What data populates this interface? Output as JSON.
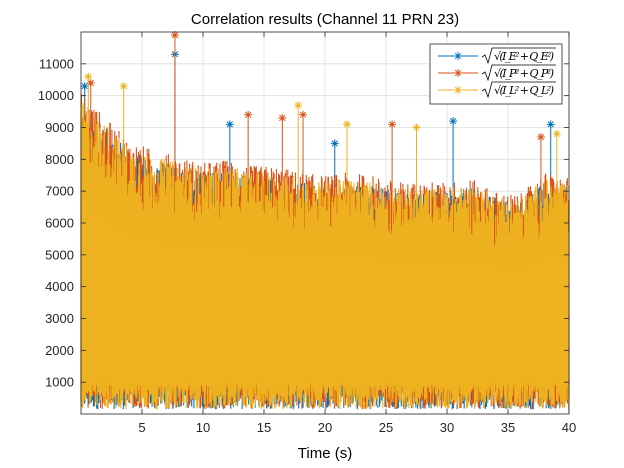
{
  "chart_data": {
    "type": "line",
    "title": "Correlation results (Channel 11 PRN 23)",
    "xlabel": "Time (s)",
    "ylabel": "",
    "xlim": [
      0,
      40
    ],
    "ylim": [
      0,
      12000
    ],
    "xticks": [
      5,
      10,
      15,
      20,
      25,
      30,
      35,
      40
    ],
    "yticks": [
      1000,
      2000,
      3000,
      4000,
      5000,
      6000,
      7000,
      8000,
      9000,
      10000,
      11000
    ],
    "grid": true,
    "legend_position": "top-right",
    "series": [
      {
        "name": "√(I_E² + Q_E²)",
        "label_base": "I",
        "label_sub": "E",
        "color": "#0072BD",
        "marker": "asterisk",
        "envelope": [
          [
            0,
            9800
          ],
          [
            2,
            9000
          ],
          [
            4,
            8300
          ],
          [
            6,
            8000
          ],
          [
            8,
            7800
          ],
          [
            10,
            7600
          ],
          [
            12,
            7700
          ],
          [
            14,
            7400
          ],
          [
            16,
            7500
          ],
          [
            18,
            7300
          ],
          [
            20,
            7200
          ],
          [
            22,
            7300
          ],
          [
            24,
            7200
          ],
          [
            26,
            7000
          ],
          [
            28,
            7000
          ],
          [
            30,
            7000
          ],
          [
            32,
            7100
          ],
          [
            34,
            6800
          ],
          [
            36,
            6700
          ],
          [
            38,
            7300
          ],
          [
            40,
            7200
          ]
        ],
        "peaks": [
          [
            0.3,
            10300
          ],
          [
            7.7,
            11300
          ],
          [
            12.2,
            9100
          ],
          [
            30.5,
            9200
          ],
          [
            38.5,
            9100
          ],
          [
            20.8,
            8500
          ]
        ]
      },
      {
        "name": "√(I_P² + Q_P²)",
        "label_base": "I",
        "label_sub": "P",
        "color": "#D95319",
        "marker": "asterisk",
        "envelope": [
          [
            0,
            10200
          ],
          [
            2,
            9300
          ],
          [
            4,
            8600
          ],
          [
            6,
            8300
          ],
          [
            8,
            8100
          ],
          [
            10,
            7900
          ],
          [
            12,
            8000
          ],
          [
            14,
            7800
          ],
          [
            16,
            7800
          ],
          [
            18,
            7600
          ],
          [
            20,
            7500
          ],
          [
            22,
            7600
          ],
          [
            24,
            7500
          ],
          [
            26,
            7300
          ],
          [
            28,
            7300
          ],
          [
            30,
            7300
          ],
          [
            32,
            7400
          ],
          [
            34,
            7000
          ],
          [
            36,
            6900
          ],
          [
            38,
            7600
          ],
          [
            40,
            7400
          ]
        ],
        "peaks": [
          [
            7.7,
            11900
          ],
          [
            0.8,
            10400
          ],
          [
            16.5,
            9300
          ],
          [
            13.7,
            9400
          ],
          [
            18.2,
            9400
          ],
          [
            25.5,
            9100
          ],
          [
            37.7,
            8700
          ]
        ]
      },
      {
        "name": "√(I_L² + Q_L²)",
        "label_base": "I",
        "label_sub": "L",
        "color": "#EDB120",
        "marker": "asterisk",
        "envelope": [
          [
            0,
            9900
          ],
          [
            2,
            9100
          ],
          [
            4,
            8400
          ],
          [
            6,
            8100
          ],
          [
            8,
            7900
          ],
          [
            10,
            7700
          ],
          [
            12,
            7800
          ],
          [
            14,
            7600
          ],
          [
            16,
            7600
          ],
          [
            18,
            7400
          ],
          [
            20,
            7300
          ],
          [
            22,
            7400
          ],
          [
            24,
            7300
          ],
          [
            26,
            7100
          ],
          [
            28,
            7100
          ],
          [
            30,
            7100
          ],
          [
            32,
            7200
          ],
          [
            34,
            6900
          ],
          [
            36,
            6800
          ],
          [
            38,
            7400
          ],
          [
            40,
            7200
          ]
        ],
        "peaks": [
          [
            0.6,
            10600
          ],
          [
            3.5,
            10300
          ],
          [
            17.8,
            9700
          ],
          [
            21.8,
            9100
          ],
          [
            27.5,
            9000
          ],
          [
            39.0,
            8800
          ]
        ]
      }
    ]
  }
}
